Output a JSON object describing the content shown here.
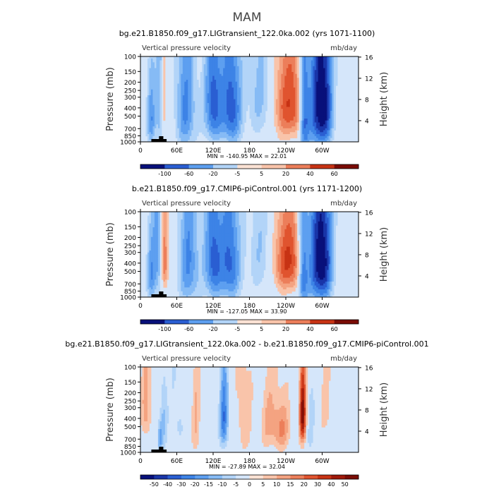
{
  "figure_title": "MAM",
  "chart_data": [
    {
      "type": "heatmap",
      "title": "bg.e21.B1850.f09_g17.LIGtransient_122.0ka.002 (yrs 1071-1100)",
      "left_label": "Vertical pressure velocity",
      "right_label": "mb/day",
      "ylabel": "Pressure (mb)",
      "y2label": "Height (km)",
      "xticks": [
        "0",
        "60E",
        "120E",
        "180",
        "120W",
        "60W"
      ],
      "yticks": [
        "100",
        "150",
        "200",
        "250",
        "300",
        "400",
        "500",
        "700",
        "850",
        "1000"
      ],
      "y2ticks": [
        "4",
        "8",
        "12",
        "16"
      ],
      "minmax": "MIN = -140.95   MAX =  22.01",
      "colorbar_ticks": [
        "-100",
        "-60",
        "-20",
        "-5",
        "5",
        "20",
        "40",
        "60"
      ],
      "colors": [
        "#08107a",
        "#1935a8",
        "#2a5ed2",
        "#3d83e6",
        "#5d9ff0",
        "#86bbf5",
        "#b2d4f8",
        "#d5e6fa",
        "#fbe2d4",
        "#f9c4aa",
        "#f4a381",
        "#ec7e5a",
        "#e0542f",
        "#c73314",
        "#a0190a",
        "#7a0c05"
      ],
      "fields": [
        {
          "lon": 18,
          "p": 550,
          "amp": -1.8,
          "sl": 5,
          "sp": 350
        },
        {
          "lon": 32,
          "p": 300,
          "amp": -1.5,
          "sl": 5,
          "sp": 400
        },
        {
          "lon": 38,
          "p": 350,
          "amp": 1.6,
          "sl": 3,
          "sp": 250
        },
        {
          "lon": 75,
          "p": 400,
          "amp": -1.9,
          "sl": 12,
          "sp": 500
        },
        {
          "lon": 120,
          "p": 350,
          "amp": -2.5,
          "sl": 10,
          "sp": 400
        },
        {
          "lon": 150,
          "p": 400,
          "amp": -2.6,
          "sl": 12,
          "sp": 420
        },
        {
          "lon": 200,
          "p": 300,
          "amp": -1.2,
          "sl": 15,
          "sp": 350
        },
        {
          "lon": 248,
          "p": 370,
          "amp": 2.3,
          "sl": 22,
          "sp": 330
        },
        {
          "lon": 270,
          "p": 450,
          "amp": -2.8,
          "sl": 6,
          "sp": 500
        },
        {
          "lon": 290,
          "p": 400,
          "amp": -2.7,
          "sl": 12,
          "sp": 480
        },
        {
          "lon": 305,
          "p": 350,
          "amp": -2.4,
          "sl": 10,
          "sp": 450
        }
      ]
    },
    {
      "type": "heatmap",
      "title": "b.e21.B1850.f09_g17.CMIP6-piControl.001 (yrs 1171-1200)",
      "left_label": "Vertical pressure velocity",
      "right_label": "mb/day",
      "ylabel": "Pressure (mb)",
      "y2label": "Height (km)",
      "xticks": [
        "0",
        "60E",
        "120E",
        "180",
        "120W",
        "60W"
      ],
      "yticks": [
        "100",
        "150",
        "200",
        "250",
        "300",
        "400",
        "500",
        "700",
        "850",
        "1000"
      ],
      "y2ticks": [
        "4",
        "8",
        "12",
        "16"
      ],
      "minmax": "MIN = -127.05   MAX =  33.90",
      "colorbar_ticks": [
        "-100",
        "-60",
        "-20",
        "-5",
        "5",
        "20",
        "40",
        "60"
      ],
      "colors": [
        "#08107a",
        "#1935a8",
        "#2a5ed2",
        "#3d83e6",
        "#5d9ff0",
        "#86bbf5",
        "#b2d4f8",
        "#d5e6fa",
        "#fbe2d4",
        "#f9c4aa",
        "#f4a381",
        "#ec7e5a",
        "#e0542f",
        "#c73314",
        "#a0190a",
        "#7a0c05"
      ],
      "fields": [
        {
          "lon": 18,
          "p": 550,
          "amp": -1.7,
          "sl": 5,
          "sp": 350
        },
        {
          "lon": 28,
          "p": 300,
          "amp": -1.4,
          "sl": 5,
          "sp": 400
        },
        {
          "lon": 40,
          "p": 380,
          "amp": 1.9,
          "sl": 4,
          "sp": 260
        },
        {
          "lon": 80,
          "p": 400,
          "amp": -1.9,
          "sl": 12,
          "sp": 500
        },
        {
          "lon": 120,
          "p": 370,
          "amp": -2.4,
          "sl": 10,
          "sp": 420
        },
        {
          "lon": 148,
          "p": 400,
          "amp": -2.4,
          "sl": 12,
          "sp": 430
        },
        {
          "lon": 200,
          "p": 300,
          "amp": -1.0,
          "sl": 15,
          "sp": 350
        },
        {
          "lon": 245,
          "p": 380,
          "amp": 2.4,
          "sl": 20,
          "sp": 300
        },
        {
          "lon": 268,
          "p": 450,
          "amp": -2.6,
          "sl": 6,
          "sp": 500
        },
        {
          "lon": 290,
          "p": 400,
          "amp": -2.6,
          "sl": 12,
          "sp": 480
        },
        {
          "lon": 305,
          "p": 350,
          "amp": -2.2,
          "sl": 10,
          "sp": 450
        }
      ]
    },
    {
      "type": "heatmap",
      "title": "bg.e21.B1850.f09_g17.LIGtransient_122.0ka.002 - b.e21.B1850.f09_g17.CMIP6-piControl.001",
      "left_label": "Vertical pressure velocity",
      "right_label": "mb/day",
      "ylabel": "Pressure (mb)",
      "y2label": "Height (km)",
      "xticks": [
        "0",
        "60E",
        "120E",
        "180",
        "120W",
        "60W"
      ],
      "yticks": [
        "100",
        "150",
        "200",
        "250",
        "300",
        "400",
        "500",
        "700",
        "850",
        "1000"
      ],
      "y2ticks": [
        "4",
        "8",
        "12",
        "16"
      ],
      "minmax": "MIN = -27.89   MAX =  32.04",
      "colorbar_ticks": [
        "-50",
        "-40",
        "-30",
        "-20",
        "-15",
        "-10",
        "-5",
        "0",
        "5",
        "10",
        "15",
        "20",
        "30",
        "40",
        "50"
      ],
      "colors": [
        "#08107a",
        "#1935a8",
        "#2a5ed2",
        "#3d83e6",
        "#5d9ff0",
        "#86bbf5",
        "#b2d4f8",
        "#d5e6fa",
        "#fbe2d4",
        "#f9c4aa",
        "#f4a381",
        "#ec7e5a",
        "#e0542f",
        "#c73314",
        "#a0190a",
        "#7a0c05"
      ],
      "fields": [
        {
          "lon": 10,
          "p": 300,
          "amp": 1.2,
          "sl": 6,
          "sp": 250
        },
        {
          "lon": 32,
          "p": 700,
          "amp": -1.5,
          "sl": 3,
          "sp": 200
        },
        {
          "lon": 38,
          "p": 400,
          "amp": -0.9,
          "sl": 4,
          "sp": 300
        },
        {
          "lon": 60,
          "p": 400,
          "amp": -0.6,
          "sl": 8,
          "sp": 350
        },
        {
          "lon": 92,
          "p": 450,
          "amp": 0.9,
          "sl": 5,
          "sp": 400
        },
        {
          "lon": 138,
          "p": 400,
          "amp": -2.2,
          "sl": 5,
          "sp": 300
        },
        {
          "lon": 170,
          "p": 350,
          "amp": 0.8,
          "sl": 10,
          "sp": 400
        },
        {
          "lon": 215,
          "p": 450,
          "amp": 1.0,
          "sl": 12,
          "sp": 300
        },
        {
          "lon": 235,
          "p": 550,
          "amp": 1.1,
          "sl": 10,
          "sp": 250
        },
        {
          "lon": 268,
          "p": 350,
          "amp": 3.4,
          "sl": 4,
          "sp": 260
        },
        {
          "lon": 280,
          "p": 450,
          "amp": -0.6,
          "sl": 6,
          "sp": 350
        },
        {
          "lon": 310,
          "p": 350,
          "amp": 0.6,
          "sl": 10,
          "sp": 300
        }
      ]
    }
  ]
}
